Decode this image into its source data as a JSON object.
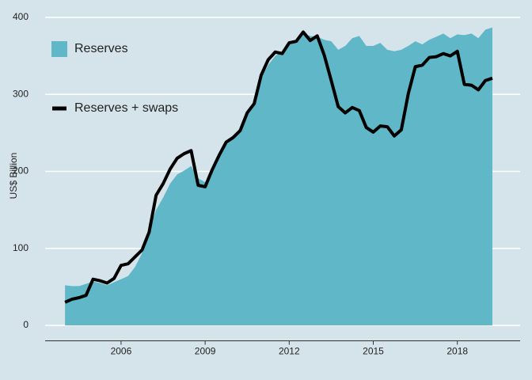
{
  "chart_data": {
    "type": "area",
    "y_label": "US$ Billion",
    "x": [
      2004,
      2004.25,
      2004.5,
      2004.75,
      2005,
      2005.25,
      2005.5,
      2005.75,
      2006,
      2006.25,
      2006.5,
      2006.75,
      2007,
      2007.25,
      2007.5,
      2007.75,
      2008,
      2008.25,
      2008.5,
      2008.75,
      2009,
      2009.25,
      2009.5,
      2009.75,
      2010,
      2010.25,
      2010.5,
      2010.75,
      2011,
      2011.25,
      2011.5,
      2011.75,
      2012,
      2012.25,
      2012.5,
      2012.75,
      2013,
      2013.25,
      2013.5,
      2013.75,
      2014,
      2014.25,
      2014.5,
      2014.75,
      2015,
      2015.25,
      2015.5,
      2015.75,
      2016,
      2016.25,
      2016.5,
      2016.75,
      2017,
      2017.25,
      2017.5,
      2017.75,
      2018,
      2018.25,
      2018.5,
      2018.75,
      2019,
      2019.25
    ],
    "series": [
      {
        "name": "Reserves",
        "style": "area",
        "color": "#5fb7c8",
        "values": [
          52,
          51,
          51,
          54,
          57,
          55,
          52,
          56,
          60,
          64,
          76,
          94,
          124,
          150,
          166,
          184,
          196,
          201,
          207,
          191,
          186,
          202,
          219,
          235,
          242,
          253,
          274,
          287,
          322,
          338,
          350,
          355,
          366,
          371,
          379,
          376,
          375,
          371,
          369,
          358,
          363,
          373,
          376,
          363,
          363,
          367,
          358,
          356,
          358,
          363,
          369,
          365,
          371,
          375,
          379,
          373,
          378,
          377,
          379,
          373,
          384,
          387
        ]
      },
      {
        "name": "Reserves + swaps",
        "style": "line",
        "color": "#000000",
        "values": [
          30,
          34,
          36,
          39,
          60,
          58,
          55,
          61,
          78,
          80,
          89,
          98,
          121,
          169,
          184,
          203,
          217,
          223,
          227,
          182,
          180,
          202,
          221,
          238,
          244,
          253,
          276,
          288,
          325,
          345,
          355,
          353,
          367,
          369,
          381,
          370,
          376,
          351,
          318,
          284,
          276,
          283,
          279,
          257,
          251,
          259,
          258,
          246,
          254,
          301,
          336,
          338,
          348,
          349,
          353,
          350,
          356,
          313,
          312,
          306,
          318,
          321
        ]
      }
    ],
    "xlim": [
      2003.29,
      2020.24
    ],
    "xticks": [
      2006,
      2009,
      2012,
      2015,
      2018
    ],
    "ylim": [
      -20,
      420
    ],
    "yticks": [
      0,
      100,
      200,
      300,
      400
    ],
    "grid": true,
    "legend": "top-left"
  }
}
